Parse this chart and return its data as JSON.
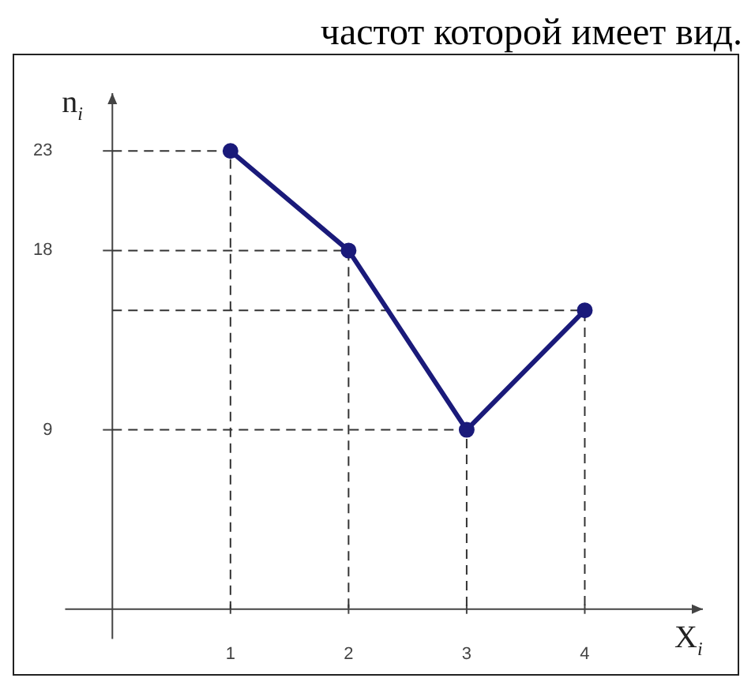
{
  "chart_data": {
    "type": "line",
    "annotations": [
      "частот которой имеет вид."
    ],
    "xlabel": "X$_{i}$",
    "ylabel": "n$_{i}$",
    "x": [
      1,
      2,
      3,
      4
    ],
    "series": [
      {
        "color": "#1a1a7a",
        "values": [
          23,
          18,
          9,
          15
        ]
      },
      {
        "color": "#333333",
        "x": [
          0,
          1,
          1
        ],
        "values": [
          23,
          23,
          0
        ],
        "line_style": "dashed",
        "marker": "none"
      },
      {
        "color": "#333333",
        "x": [
          0,
          2,
          2
        ],
        "values": [
          18,
          18,
          0
        ],
        "line_style": "dashed",
        "marker": "none"
      },
      {
        "color": "#333333",
        "x": [
          0,
          3,
          3
        ],
        "values": [
          9,
          9,
          0
        ],
        "line_style": "dashed",
        "marker": "none"
      },
      {
        "color": "#333333",
        "x": [
          0,
          4,
          4
        ],
        "values": [
          15,
          15,
          0
        ],
        "line_style": "dashed",
        "marker": "none"
      }
    ],
    "xlim": [
      -0.4,
      5
    ],
    "xticks": [
      1,
      2,
      3,
      4
    ],
    "ylim": [
      -1.5,
      25.9
    ],
    "yticks": [
      9,
      18,
      23
    ],
    "marker": "circle",
    "line_style": "solid",
    "grid": false,
    "legend": false
  }
}
